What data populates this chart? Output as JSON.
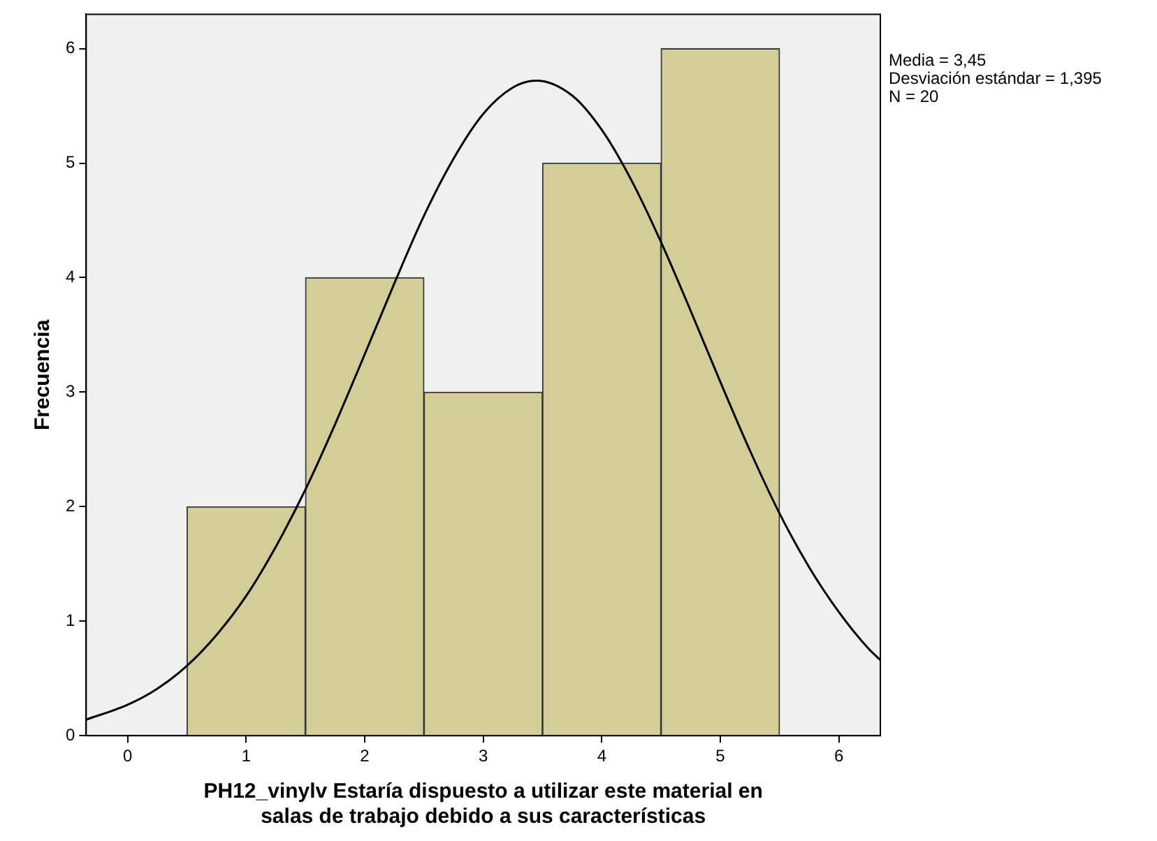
{
  "chart_data": {
    "type": "histogram",
    "xlabel": "PH12_vinylv Estaría dispuesto a utilizar este material en\nsalas de trabajo debido a sus características",
    "ylabel": "Frecuencia",
    "bins": [
      0.5,
      1.5,
      2.5,
      3.5,
      4.5,
      5.5
    ],
    "values": [
      2,
      4,
      3,
      5,
      6
    ],
    "color": "#d3ce97",
    "series": [
      {
        "type": "line",
        "color": "#000000",
        "marker": "none",
        "x": [
          -0.35,
          0,
          0.25,
          0.5,
          0.75,
          1,
          1.25,
          1.5,
          1.75,
          2,
          2.25,
          2.5,
          2.75,
          3,
          3.25,
          3.45,
          3.75,
          4,
          4.25,
          4.5,
          4.75,
          5,
          5.25,
          5.5,
          5.75,
          6,
          6.25,
          6.35
        ],
        "values": [
          0.14,
          0.27,
          0.41,
          0.61,
          0.88,
          1.22,
          1.65,
          2.15,
          2.72,
          3.33,
          3.95,
          4.54,
          5.04,
          5.43,
          5.66,
          5.72,
          5.59,
          5.29,
          4.85,
          4.31,
          3.71,
          3.09,
          2.49,
          1.94,
          1.47,
          1.08,
          0.76,
          0.66
        ]
      }
    ],
    "xlim": [
      -0.35,
      6.35
    ],
    "xticks": [
      0,
      1,
      2,
      3,
      4,
      5,
      6
    ],
    "ylim": [
      0,
      6.3
    ],
    "yticks": [
      0,
      1,
      2,
      3,
      4,
      5,
      6
    ],
    "annotations": [
      "Media = 3,45\nDesviación estándar = 1,395\nN = 20"
    ],
    "grid": false,
    "legend": false
  }
}
